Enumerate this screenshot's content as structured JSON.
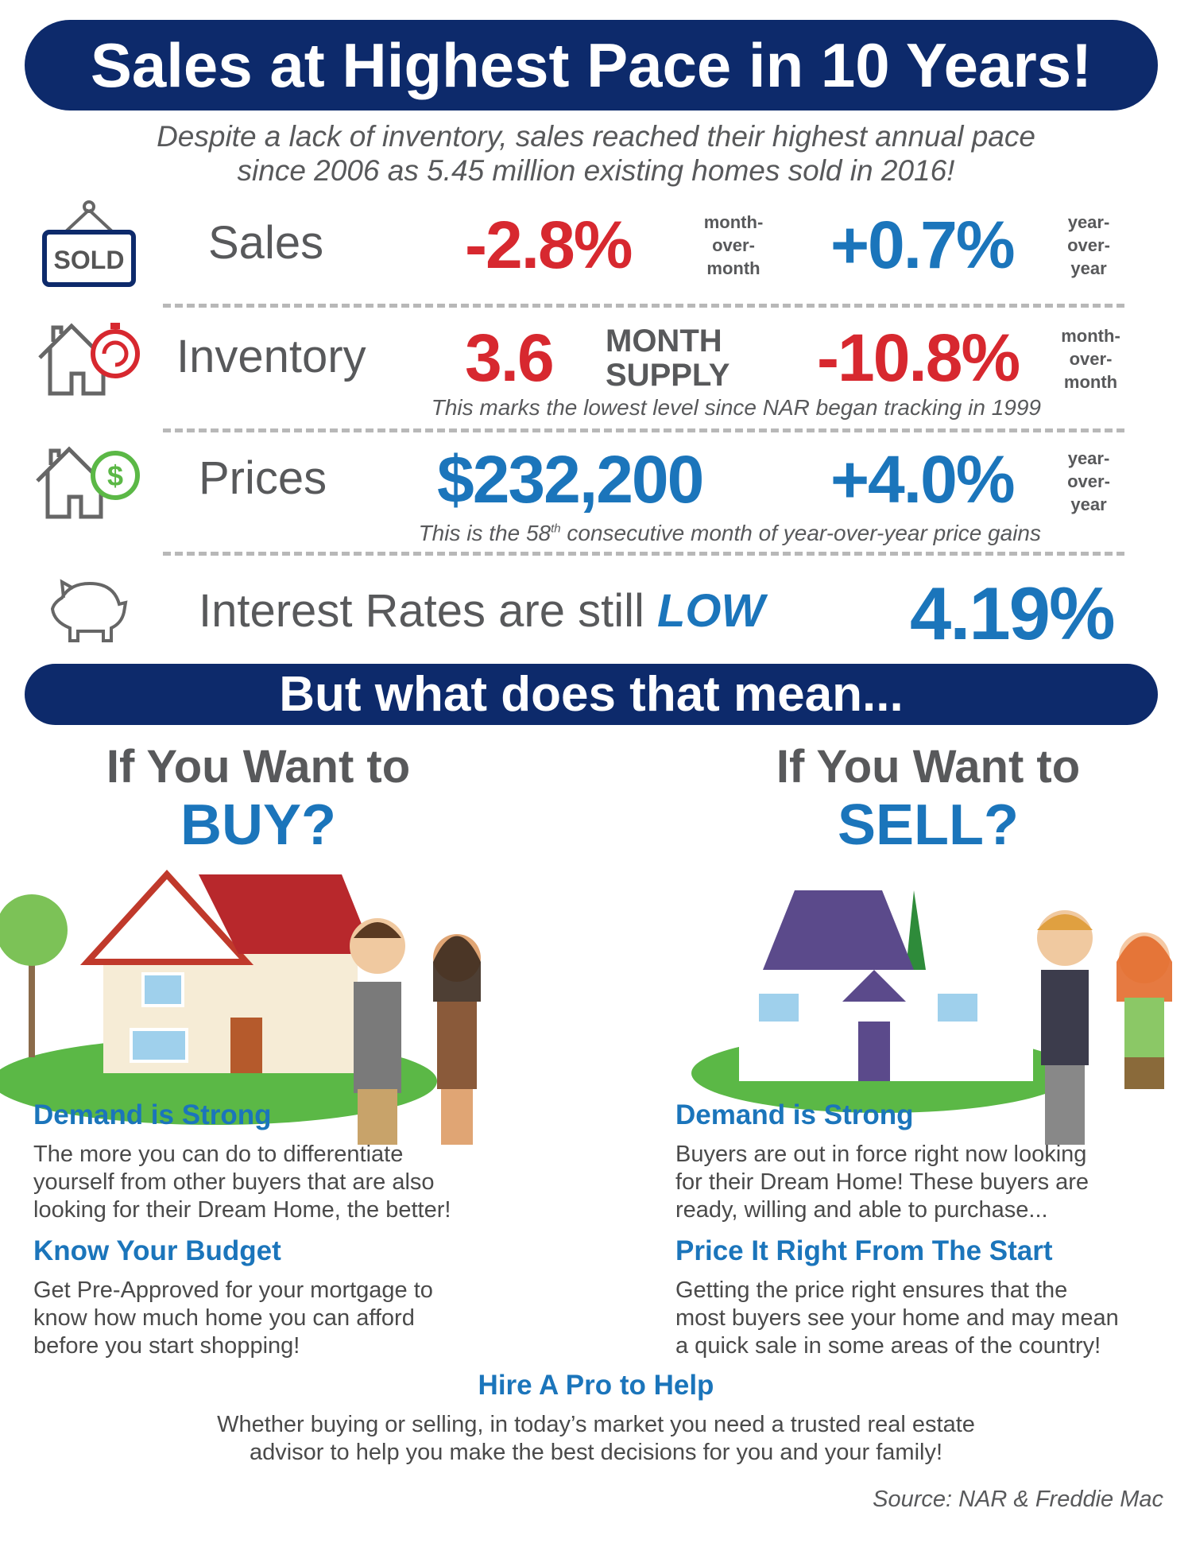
{
  "header": {
    "title": "Sales at Highest Pace in 10 Years!",
    "subtitle_line1": "Despite a lack of inventory, sales reached their highest annual pace",
    "subtitle_line2": "since 2006 as 5.45 million existing homes sold in 2016!"
  },
  "stats": {
    "sales": {
      "icon": "sold-sign-icon",
      "sign_text": "SOLD",
      "label": "Sales",
      "value1": "-2.8%",
      "unit1": [
        "month-",
        "over-",
        "month"
      ],
      "value2": "+0.7%",
      "unit2": [
        "year-",
        "over-",
        "year"
      ]
    },
    "inventory": {
      "icon": "house-stopwatch-icon",
      "label": "Inventory",
      "value1": "3.6",
      "unit1": [
        "MONTH",
        "SUPPLY"
      ],
      "value2": "-10.8%",
      "unit2": [
        "month-",
        "over-",
        "month"
      ],
      "note": "This marks the lowest level since NAR began tracking in 1999"
    },
    "prices": {
      "icon": "house-dollar-icon",
      "label": "Prices",
      "value1": "$232,200",
      "value2": "+4.0%",
      "unit2": [
        "year-",
        "over-",
        "year"
      ],
      "note_pre": "This is the 58",
      "note_sup": "th",
      "note_post": " consecutive month of year-over-year price gains"
    },
    "rates": {
      "icon": "piggy-bank-icon",
      "label": "Interest Rates are still ",
      "emphasis": "LOW",
      "value": "4.19%"
    }
  },
  "section_bar": "But what does that mean...",
  "buy": {
    "heading1": "If You Want to",
    "heading2": "BUY?",
    "items": [
      {
        "title": "Demand is Strong",
        "lines": [
          "The more you can do to differentiate",
          "yourself from other buyers that are also",
          "looking for their Dream Home, the better!"
        ]
      },
      {
        "title": "Know Your Budget",
        "lines": [
          "Get Pre-Approved for your mortgage to",
          "know how much home you can afford",
          "before you start shopping!"
        ]
      }
    ]
  },
  "sell": {
    "heading1": "If You Want to",
    "heading2": "SELL?",
    "items": [
      {
        "title": "Demand is Strong",
        "lines": [
          "Buyers are out in force right now looking",
          "for their Dream Home! These buyers are",
          "ready, willing and able to purchase..."
        ]
      },
      {
        "title": "Price It Right From The Start",
        "lines": [
          "Getting the price right ensures that the",
          "most buyers see your home and may mean",
          "a quick sale in some areas of the country!"
        ]
      }
    ]
  },
  "pro": {
    "title": "Hire A Pro to Help",
    "lines": [
      "Whether buying or selling, in today’s market you need a trusted real estate",
      "advisor to help you make the best decisions for you and your family!"
    ]
  },
  "source": "Source: NAR & Freddie Mac",
  "colors": {
    "navy": "#0d2a6b",
    "red": "#d7282f",
    "blue": "#1b75bb",
    "gray": "#58595b",
    "green": "#5bb846"
  }
}
